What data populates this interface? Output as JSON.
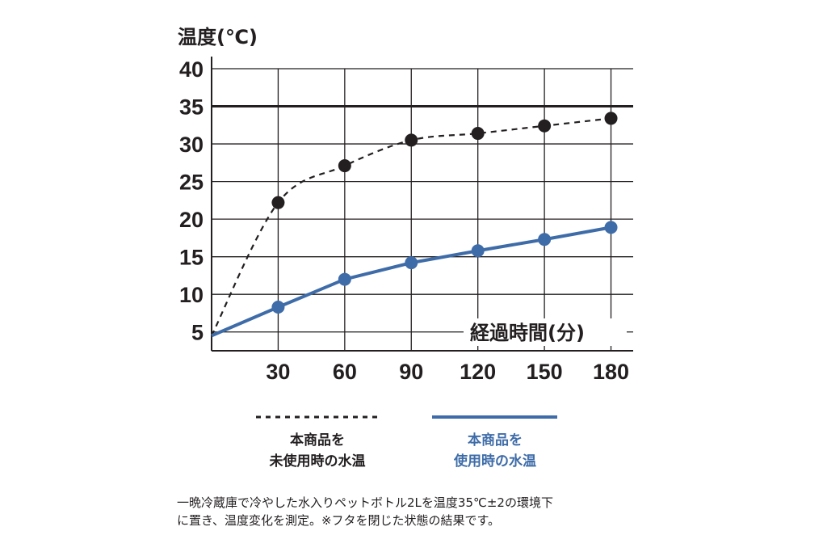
{
  "chart_data": {
    "type": "line",
    "ylabel": "温度(℃)",
    "xlabel": "経過時間(分)",
    "x": [
      0,
      30,
      60,
      90,
      120,
      150,
      180
    ],
    "x_tick_labels": [
      "30",
      "60",
      "90",
      "120",
      "150",
      "180"
    ],
    "y_tick_labels": [
      "5",
      "10",
      "15",
      "20",
      "25",
      "30",
      "35",
      "40"
    ],
    "ylim": [
      2.5,
      40
    ],
    "xlim": [
      0,
      190
    ],
    "grid": true,
    "reference_line": {
      "y": 35
    },
    "series": [
      {
        "name": "本商品を未使用時の水温",
        "style": "dashed",
        "color": "#231f20",
        "values": [
          4.5,
          22.2,
          27.1,
          30.5,
          31.4,
          32.4,
          33.4
        ]
      },
      {
        "name": "本商品を使用時の水温",
        "style": "solid",
        "color": "#3e6ca8",
        "values": [
          4.5,
          8.3,
          12.0,
          14.2,
          15.8,
          17.3,
          18.9
        ]
      }
    ]
  },
  "legend": {
    "unused_line1": "本商品を",
    "unused_line2": "未使用時の水温",
    "used_line1": "本商品を",
    "used_line2": "使用時の水温"
  },
  "footnote": {
    "line1": "一晩冷蔵庫で冷やした水入りペットボトル2Lを温度35℃±2の環境下",
    "line2": "に置き、温度変化を測定。※フタを閉じた状態の結果です。"
  }
}
